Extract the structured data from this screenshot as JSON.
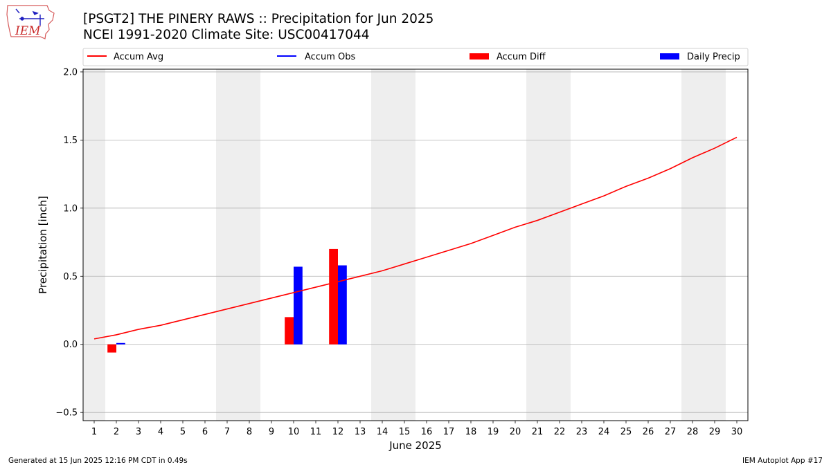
{
  "header": {
    "title_line1": "[PSGT2] THE PINERY RAWS :: Precipitation for Jun 2025",
    "title_line2": "NCEI 1991-2020 Climate Site: USC00417044",
    "logo_text": "IEM"
  },
  "footer": {
    "generated": "Generated at 15 Jun 2025 12:16 PM CDT in 0.49s",
    "app": "IEM Autoplot App #17"
  },
  "colors": {
    "accum_avg": "#ff0000",
    "accum_obs": "#0000ff",
    "accum_diff": "#ff0000",
    "daily_precip": "#0000ff",
    "weekend_shade": "#eeeeee",
    "grid": "#b0b0b0"
  },
  "chart_data": {
    "type": "bar",
    "xlabel": "June 2025",
    "ylabel": "Precipitation [inch]",
    "xlim": [
      0.5,
      30.5
    ],
    "ylim": [
      -0.56,
      2.02
    ],
    "yticks": [
      -0.5,
      0.0,
      0.5,
      1.0,
      1.5,
      2.0
    ],
    "ytick_labels": [
      "−0.5",
      "0.0",
      "0.5",
      "1.0",
      "1.5",
      "2.0"
    ],
    "x": [
      1,
      2,
      3,
      4,
      5,
      6,
      7,
      8,
      9,
      10,
      11,
      12,
      13,
      14,
      15,
      16,
      17,
      18,
      19,
      20,
      21,
      22,
      23,
      24,
      25,
      26,
      27,
      28,
      29,
      30
    ],
    "xtick_labels": [
      "1",
      "2",
      "3",
      "4",
      "5",
      "6",
      "7",
      "8",
      "9",
      "10",
      "11",
      "12",
      "13",
      "14",
      "15",
      "16",
      "17",
      "18",
      "19",
      "20",
      "21",
      "22",
      "23",
      "24",
      "25",
      "26",
      "27",
      "28",
      "29",
      "30"
    ],
    "grid": "horizontal",
    "legend_position": "top",
    "weekend_days": [
      1,
      7,
      8,
      14,
      15,
      21,
      22,
      28,
      29
    ],
    "legend": [
      {
        "label": "Accum Avg",
        "kind": "line",
        "color": "#ff0000"
      },
      {
        "label": "Accum Obs",
        "kind": "line",
        "color": "#0000ff"
      },
      {
        "label": "Accum Diff",
        "kind": "bar",
        "color": "#ff0000"
      },
      {
        "label": "Daily Precip",
        "kind": "bar",
        "color": "#0000ff"
      }
    ],
    "series": [
      {
        "name": "Accum Avg",
        "kind": "line",
        "values": [
          0.04,
          0.07,
          0.11,
          0.14,
          0.18,
          0.22,
          0.26,
          0.3,
          0.34,
          0.38,
          0.42,
          0.46,
          0.5,
          0.54,
          0.59,
          0.64,
          0.69,
          0.74,
          0.8,
          0.86,
          0.91,
          0.97,
          1.03,
          1.09,
          1.16,
          1.22,
          1.29,
          1.37,
          1.44,
          1.52
        ]
      },
      {
        "name": "Accum Diff",
        "kind": "bar",
        "x": [
          2,
          10,
          12
        ],
        "values": [
          -0.06,
          0.2,
          0.7
        ]
      },
      {
        "name": "Daily Precip",
        "kind": "bar",
        "x": [
          2,
          10,
          12
        ],
        "values": [
          0.01,
          0.57,
          0.58
        ]
      }
    ]
  }
}
